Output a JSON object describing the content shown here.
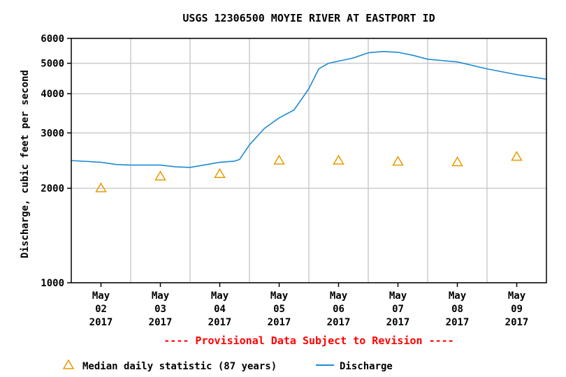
{
  "chart_data": {
    "type": "line",
    "title": "USGS 12306500 MOYIE RIVER AT EASTPORT ID",
    "ylabel": "Discharge, cubic feet per second",
    "xlabel": "",
    "y_scale": "log",
    "ylim": [
      1000,
      6000
    ],
    "y_ticks": [
      "1000",
      "2000",
      "3000",
      "4000",
      "5000",
      "6000"
    ],
    "y_tick_values": [
      1000,
      2000,
      3000,
      4000,
      5000,
      6000
    ],
    "xlim": [
      "2017-05-01T12:00",
      "2017-05-09T12:00"
    ],
    "x_ticks": [
      {
        "month": "May",
        "day": "02",
        "year": "2017"
      },
      {
        "month": "May",
        "day": "03",
        "year": "2017"
      },
      {
        "month": "May",
        "day": "04",
        "year": "2017"
      },
      {
        "month": "May",
        "day": "05",
        "year": "2017"
      },
      {
        "month": "May",
        "day": "06",
        "year": "2017"
      },
      {
        "month": "May",
        "day": "07",
        "year": "2017"
      },
      {
        "month": "May",
        "day": "08",
        "year": "2017"
      },
      {
        "month": "May",
        "day": "09",
        "year": "2017"
      }
    ],
    "grid": true,
    "series": [
      {
        "name": "Discharge",
        "color": "#1e8ad4",
        "style": "line",
        "points": [
          [
            "2017-05-01T12:00",
            2450
          ],
          [
            "2017-05-02T00:00",
            2420
          ],
          [
            "2017-05-02T06:00",
            2380
          ],
          [
            "2017-05-02T12:00",
            2370
          ],
          [
            "2017-05-03T00:00",
            2370
          ],
          [
            "2017-05-03T06:00",
            2340
          ],
          [
            "2017-05-03T12:00",
            2330
          ],
          [
            "2017-05-04T00:00",
            2420
          ],
          [
            "2017-05-04T06:00",
            2440
          ],
          [
            "2017-05-04T08:00",
            2470
          ],
          [
            "2017-05-04T12:00",
            2750
          ],
          [
            "2017-05-04T18:00",
            3100
          ],
          [
            "2017-05-05T00:00",
            3350
          ],
          [
            "2017-05-05T06:00",
            3550
          ],
          [
            "2017-05-05T12:00",
            4150
          ],
          [
            "2017-05-05T16:00",
            4800
          ],
          [
            "2017-05-05T20:00",
            5000
          ],
          [
            "2017-05-06T06:00",
            5200
          ],
          [
            "2017-05-06T12:00",
            5400
          ],
          [
            "2017-05-06T18:00",
            5450
          ],
          [
            "2017-05-07T00:00",
            5420
          ],
          [
            "2017-05-07T06:00",
            5300
          ],
          [
            "2017-05-07T12:00",
            5150
          ],
          [
            "2017-05-08T00:00",
            5050
          ],
          [
            "2017-05-08T12:00",
            4800
          ],
          [
            "2017-05-09T00:00",
            4600
          ],
          [
            "2017-05-09T12:00",
            4450
          ]
        ]
      },
      {
        "name": "Median daily statistic (87 years)",
        "color": "#e69a00",
        "style": "triangle",
        "points": [
          [
            "2017-05-02T00:00",
            2000
          ],
          [
            "2017-05-03T00:00",
            2180
          ],
          [
            "2017-05-04T00:00",
            2220
          ],
          [
            "2017-05-05T00:00",
            2450
          ],
          [
            "2017-05-06T00:00",
            2450
          ],
          [
            "2017-05-07T00:00",
            2430
          ],
          [
            "2017-05-08T00:00",
            2420
          ],
          [
            "2017-05-09T00:00",
            2520
          ]
        ]
      }
    ],
    "legend": [
      {
        "label": "Median daily statistic (87 years)",
        "symbol": "triangle",
        "color": "#e69a00"
      },
      {
        "label": "Discharge",
        "symbol": "line",
        "color": "#1e8ad4"
      }
    ],
    "legend_placement": "bottom",
    "annotation": "---- Provisional Data Subject to Revision ----",
    "annotation_color": "#ff0000"
  }
}
